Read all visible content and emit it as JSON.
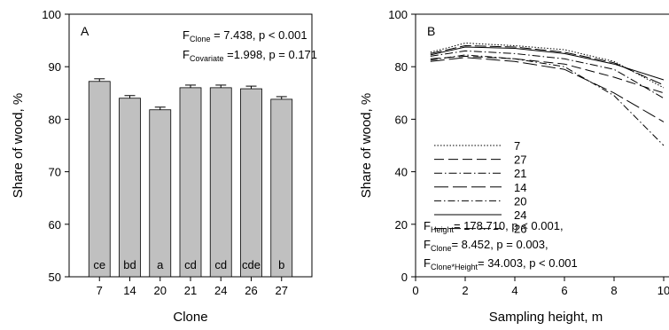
{
  "chart_data": [
    {
      "type": "bar",
      "panel_label": "A",
      "xlabel": "Clone",
      "ylabel": "Share of wood, %",
      "ylim": [
        50,
        100
      ],
      "yticks": [
        "50",
        "60",
        "70",
        "80",
        "90",
        "100"
      ],
      "categories": [
        "7",
        "14",
        "20",
        "21",
        "24",
        "26",
        "27"
      ],
      "values": [
        87.2,
        84.0,
        81.8,
        86.0,
        86.0,
        85.8,
        83.8
      ],
      "errors": [
        0.5,
        0.5,
        0.5,
        0.5,
        0.5,
        0.5,
        0.5
      ],
      "bar_color": "#c0c0c0",
      "letters": [
        "ce",
        "bd",
        "a",
        "cd",
        "cd",
        "cde",
        "b"
      ],
      "stats": [
        {
          "prefix": "F",
          "sub": "Clone",
          "text": " = 7.438, p < 0.001"
        },
        {
          "prefix": "F",
          "sub": "Covariate",
          "text": " =1.998, p = 0.171"
        }
      ],
      "grid": false
    },
    {
      "type": "line",
      "panel_label": "B",
      "xlabel": "Sampling height, m",
      "ylabel": "Share of wood, %",
      "xlim": [
        0,
        10
      ],
      "ylim": [
        0,
        100
      ],
      "xticks": [
        "0",
        "2",
        "4",
        "6",
        "8",
        "10"
      ],
      "yticks": [
        "0",
        "20",
        "40",
        "60",
        "80",
        "100"
      ],
      "series": [
        {
          "name": "7",
          "dash": "1.5,2",
          "x": [
            0.6,
            2,
            4,
            6,
            8,
            10
          ],
          "y": [
            85.5,
            89,
            88,
            86.5,
            82,
            72
          ]
        },
        {
          "name": "27",
          "dash": "11,5",
          "x": [
            0.6,
            2,
            4,
            6,
            8,
            10
          ],
          "y": [
            83,
            84,
            83,
            81,
            76,
            70
          ]
        },
        {
          "name": "21",
          "dash": "9,3,1.5,3",
          "x": [
            0.6,
            2,
            4,
            6,
            8,
            10
          ],
          "y": [
            84,
            86,
            85,
            83,
            79,
            68
          ]
        },
        {
          "name": "14",
          "dash": "16,5",
          "x": [
            0.6,
            2,
            4,
            6,
            8,
            10
          ],
          "y": [
            82,
            83.5,
            82,
            79,
            70,
            59
          ]
        },
        {
          "name": "20",
          "dash": "8,3,1.5,3",
          "x": [
            0.6,
            2,
            4,
            6,
            8,
            10
          ],
          "y": [
            82.5,
            84.5,
            83,
            80,
            69,
            50
          ]
        },
        {
          "name": "24",
          "dash": "",
          "x": [
            0.6,
            2,
            4,
            6,
            8,
            10
          ],
          "y": [
            84.5,
            87.5,
            87,
            85,
            81,
            75
          ]
        },
        {
          "name": "26",
          "dash": "13,4",
          "x": [
            0.6,
            2,
            4,
            6,
            8,
            10
          ],
          "y": [
            85,
            88,
            87.5,
            85.5,
            81.5,
            73
          ]
        }
      ],
      "stats": [
        {
          "prefix": "F",
          "sub": "Height",
          "text": "= 178.710, p < 0.001,"
        },
        {
          "prefix": "F",
          "sub": "Clone",
          "text": "= 8.452, p =  0.003,"
        },
        {
          "prefix": "F",
          "sub": "Clone*Height",
          "text": "= 34.003, p < 0.001"
        }
      ],
      "grid": false,
      "legend_position": "center-left"
    }
  ]
}
